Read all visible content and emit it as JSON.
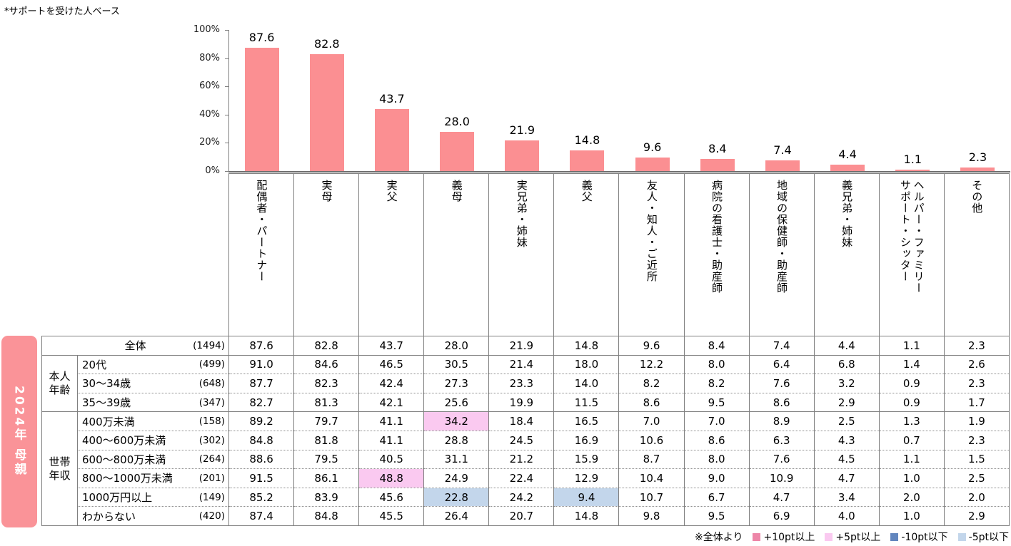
{
  "note": "*サポートを受けた人ベース",
  "sidebar": {
    "label": "2024年 母親",
    "bg": "#FA9398"
  },
  "chart_data": {
    "type": "bar",
    "title": "",
    "xlabel": "",
    "ylabel": "",
    "ylim": [
      0,
      100
    ],
    "yticks": [
      "100%",
      "80%",
      "60%",
      "40%",
      "20%",
      "0%"
    ],
    "grid": false,
    "bar_color": "#FB8F92",
    "categories": [
      "配偶者・パートナー",
      "実母",
      "実父",
      "義母",
      "実兄弟・姉妹",
      "義父",
      "友人・知人・ご近所",
      "病院の看護士・助産師",
      "地域の保健師・助産師",
      "義兄弟・姉妹",
      "ヘルパー・ファミリー\nサポート・シッター",
      "その他"
    ],
    "values": [
      87.6,
      82.8,
      43.7,
      28.0,
      21.9,
      14.8,
      9.6,
      8.4,
      7.4,
      4.4,
      1.1,
      2.3
    ]
  },
  "table": {
    "groups": [
      {
        "label": "本人\n年齢",
        "start": 1,
        "span": 3
      },
      {
        "label": "世帯\n年収",
        "start": 4,
        "span": 6
      }
    ],
    "rows": [
      {
        "label": "全体",
        "count": "(1494)",
        "merged": true,
        "values": [
          "87.6",
          "82.8",
          "43.7",
          "28.0",
          "21.9",
          "14.8",
          "9.6",
          "8.4",
          "7.4",
          "4.4",
          "1.1",
          "2.3"
        ]
      },
      {
        "label": "20代",
        "count": "(499)",
        "values": [
          "91.0",
          "84.6",
          "46.5",
          "30.5",
          "21.4",
          "18.0",
          "12.2",
          "8.0",
          "6.4",
          "6.8",
          "1.4",
          "2.6"
        ]
      },
      {
        "label": "30〜34歳",
        "count": "(648)",
        "values": [
          "87.7",
          "82.3",
          "42.4",
          "27.3",
          "23.3",
          "14.0",
          "8.2",
          "8.2",
          "7.6",
          "3.2",
          "0.9",
          "2.3"
        ]
      },
      {
        "label": "35〜39歳",
        "count": "(347)",
        "values": [
          "82.7",
          "81.3",
          "42.1",
          "25.6",
          "19.9",
          "11.5",
          "8.6",
          "9.5",
          "8.6",
          "2.9",
          "0.9",
          "1.7"
        ]
      },
      {
        "label": "400万未満",
        "count": "(158)",
        "values": [
          "89.2",
          "79.7",
          "41.1",
          "34.2",
          "18.4",
          "16.5",
          "7.0",
          "7.0",
          "8.9",
          "2.5",
          "1.3",
          "1.9"
        ]
      },
      {
        "label": "400〜600万未満",
        "count": "(302)",
        "values": [
          "84.8",
          "81.8",
          "41.1",
          "28.8",
          "24.5",
          "16.9",
          "10.6",
          "8.6",
          "6.3",
          "4.3",
          "0.7",
          "2.3"
        ]
      },
      {
        "label": "600〜800万未満",
        "count": "(264)",
        "values": [
          "88.6",
          "79.5",
          "40.5",
          "31.1",
          "21.2",
          "15.9",
          "8.7",
          "8.0",
          "7.6",
          "4.5",
          "1.1",
          "1.5"
        ]
      },
      {
        "label": "800〜1000万未満",
        "count": "(201)",
        "values": [
          "91.5",
          "86.1",
          "48.8",
          "24.9",
          "22.4",
          "12.9",
          "10.4",
          "9.0",
          "10.9",
          "4.7",
          "1.0",
          "2.5"
        ]
      },
      {
        "label": "1000万円以上",
        "count": "(149)",
        "values": [
          "85.2",
          "83.9",
          "45.6",
          "22.8",
          "24.2",
          "9.4",
          "10.7",
          "6.7",
          "4.7",
          "3.4",
          "2.0",
          "2.0"
        ]
      },
      {
        "label": "わからない",
        "count": "(420)",
        "values": [
          "87.4",
          "84.8",
          "45.5",
          "26.4",
          "20.7",
          "14.8",
          "9.8",
          "9.5",
          "6.9",
          "4.0",
          "1.0",
          "2.9"
        ]
      }
    ],
    "row_borders": [
      "solid",
      "solid",
      "dot",
      "dot",
      "solid",
      "dot",
      "dot",
      "dot",
      "dot",
      "dot"
    ],
    "highlights": [
      {
        "row": 4,
        "col": 3,
        "type": "plus5"
      },
      {
        "row": 7,
        "col": 2,
        "type": "plus5"
      },
      {
        "row": 8,
        "col": 3,
        "type": "minus5"
      },
      {
        "row": 8,
        "col": 5,
        "type": "minus5"
      }
    ],
    "highlight_colors": {
      "plus10": "#ED86A8",
      "plus5": "#FAC9F0",
      "minus10": "#6286BE",
      "minus5": "#C3D6EB"
    }
  },
  "legend": {
    "prefix": "※全体より",
    "items": [
      {
        "key": "plus10",
        "label": "+10pt以上",
        "color": "#ED86A8"
      },
      {
        "key": "plus5",
        "label": "+5pt以上",
        "color": "#FAC9F0"
      },
      {
        "key": "minus10",
        "label": "-10pt以下",
        "color": "#6286BE"
      },
      {
        "key": "minus5",
        "label": "-5pt以下",
        "color": "#C3D6EB"
      }
    ]
  }
}
